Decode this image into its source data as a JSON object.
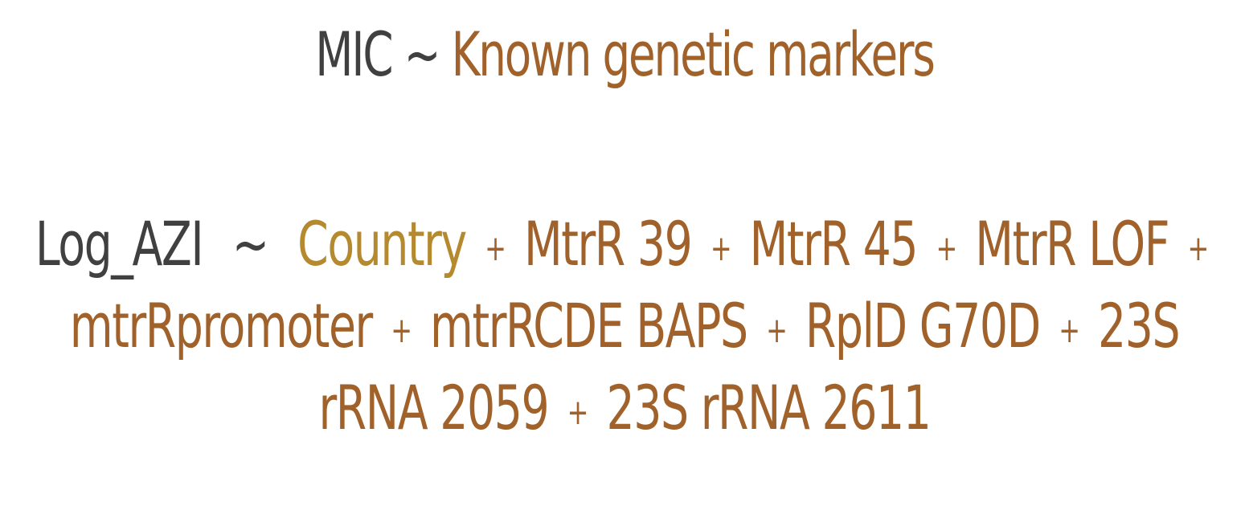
{
  "title": {
    "lhs": "MIC",
    "operator": "~",
    "rhs": "Known genetic markers"
  },
  "formula": {
    "response": "Log_AZI",
    "operator": "~",
    "plus": "+",
    "terms": [
      "Country",
      "MtrR 39",
      "MtrR 45",
      "MtrR LOF",
      "mtrRpromoter",
      "mtrRCDE BAPS",
      "RplD G70D",
      "23S rRNA 2059",
      "23S rRNA 2611"
    ]
  },
  "colors": {
    "dark_text": "#404040",
    "accent_brown": "#a0622a",
    "accent_gold": "#b58a2f"
  }
}
